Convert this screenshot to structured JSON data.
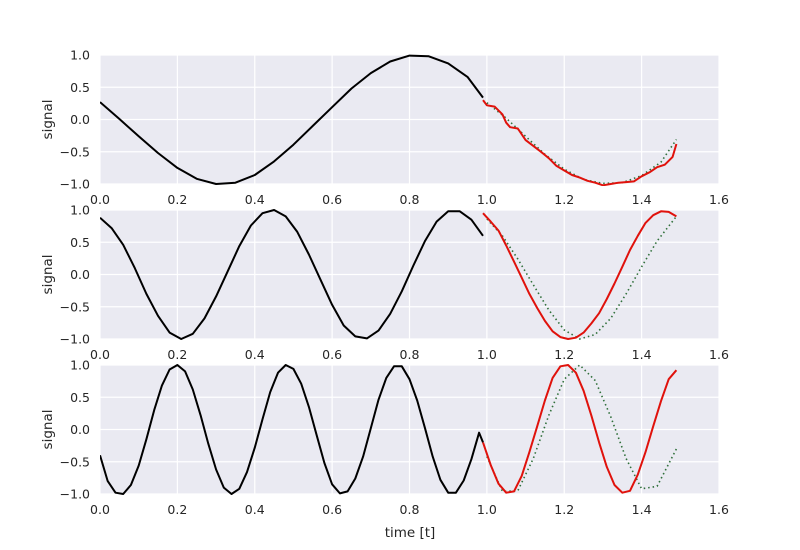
{
  "figure": {
    "xlabel": "time [t]"
  },
  "colors": {
    "panel_background": "#eaeaf2",
    "grid": "#ffffff",
    "history_line": "#000000",
    "prediction_line": "#e0120c",
    "reference_dotted": "#2f6f3a"
  },
  "chart_data": [
    {
      "type": "line",
      "xlabel": "",
      "ylabel": "signal",
      "xlim": [
        0.0,
        1.6
      ],
      "ylim": [
        -1.0,
        1.0
      ],
      "xticks": [
        "0.0",
        "0.2",
        "0.4",
        "0.6",
        "0.8",
        "1.0",
        "1.2",
        "1.4",
        "1.6"
      ],
      "yticks": [
        "1.0",
        "0.5",
        "0.0",
        "−0.5",
        "−1.0"
      ],
      "grid": true,
      "legend": "none",
      "series": [
        {
          "style": "solid-black",
          "x": [
            0.0,
            0.05,
            0.1,
            0.15,
            0.2,
            0.25,
            0.3,
            0.35,
            0.4,
            0.45,
            0.5,
            0.55,
            0.6,
            0.65,
            0.7,
            0.75,
            0.8,
            0.85,
            0.9,
            0.95,
            0.99
          ],
          "y": [
            0.27,
            0.01,
            -0.26,
            -0.52,
            -0.75,
            -0.92,
            -1.0,
            -0.98,
            -0.86,
            -0.65,
            -0.39,
            -0.1,
            0.19,
            0.48,
            0.72,
            0.9,
            0.99,
            0.98,
            0.87,
            0.66,
            0.34
          ]
        },
        {
          "style": "solid-red",
          "x": [
            0.99,
            1.0,
            1.02,
            1.04,
            1.05,
            1.06,
            1.08,
            1.1,
            1.12,
            1.14,
            1.15,
            1.16,
            1.18,
            1.2,
            1.22,
            1.24,
            1.26,
            1.28,
            1.3,
            1.32,
            1.34,
            1.36,
            1.38,
            1.4,
            1.42,
            1.44,
            1.46,
            1.48,
            1.49
          ],
          "y": [
            0.3,
            0.22,
            0.2,
            0.08,
            -0.05,
            -0.12,
            -0.14,
            -0.32,
            -0.41,
            -0.5,
            -0.55,
            -0.6,
            -0.72,
            -0.79,
            -0.86,
            -0.9,
            -0.95,
            -0.98,
            -1.02,
            -1.0,
            -0.98,
            -0.97,
            -0.96,
            -0.88,
            -0.82,
            -0.74,
            -0.7,
            -0.58,
            -0.38
          ]
        },
        {
          "style": "dotted-green",
          "x": [
            1.0,
            1.05,
            1.1,
            1.15,
            1.2,
            1.25,
            1.3,
            1.35,
            1.4,
            1.45,
            1.49
          ],
          "y": [
            0.26,
            0.02,
            -0.26,
            -0.54,
            -0.77,
            -0.93,
            -0.99,
            -0.98,
            -0.87,
            -0.66,
            -0.31
          ]
        }
      ]
    },
    {
      "type": "line",
      "xlabel": "",
      "ylabel": "signal",
      "xlim": [
        0.0,
        1.6
      ],
      "ylim": [
        -1.0,
        1.0
      ],
      "xticks": [
        "0.0",
        "0.2",
        "0.4",
        "0.6",
        "0.8",
        "1.0",
        "1.2",
        "1.4",
        "1.6"
      ],
      "yticks": [
        "1.0",
        "0.5",
        "0.0",
        "−0.5",
        "−1.0"
      ],
      "grid": true,
      "legend": "none",
      "series": [
        {
          "style": "solid-black",
          "x": [
            0.0,
            0.03,
            0.06,
            0.09,
            0.12,
            0.15,
            0.18,
            0.21,
            0.24,
            0.27,
            0.3,
            0.33,
            0.36,
            0.39,
            0.42,
            0.45,
            0.48,
            0.51,
            0.54,
            0.57,
            0.6,
            0.63,
            0.66,
            0.69,
            0.72,
            0.75,
            0.78,
            0.81,
            0.84,
            0.87,
            0.9,
            0.93,
            0.96,
            0.99
          ],
          "y": [
            0.88,
            0.72,
            0.46,
            0.1,
            -0.3,
            -0.64,
            -0.9,
            -1.0,
            -0.92,
            -0.68,
            -0.34,
            0.05,
            0.44,
            0.76,
            0.95,
            1.0,
            0.9,
            0.66,
            0.31,
            -0.08,
            -0.47,
            -0.79,
            -0.96,
            -0.99,
            -0.87,
            -0.61,
            -0.26,
            0.14,
            0.52,
            0.82,
            0.98,
            0.98,
            0.85,
            0.6
          ]
        },
        {
          "style": "solid-red",
          "x": [
            0.99,
            1.01,
            1.03,
            1.05,
            1.07,
            1.09,
            1.11,
            1.13,
            1.15,
            1.17,
            1.19,
            1.21,
            1.23,
            1.25,
            1.27,
            1.29,
            1.31,
            1.33,
            1.35,
            1.37,
            1.39,
            1.41,
            1.43,
            1.45,
            1.47,
            1.49
          ],
          "y": [
            0.95,
            0.82,
            0.68,
            0.45,
            0.2,
            -0.05,
            -0.3,
            -0.52,
            -0.72,
            -0.88,
            -0.97,
            -1.0,
            -0.98,
            -0.9,
            -0.76,
            -0.6,
            -0.38,
            -0.14,
            0.12,
            0.38,
            0.6,
            0.8,
            0.92,
            0.98,
            0.97,
            0.9
          ]
        },
        {
          "style": "dotted-green",
          "x": [
            1.0,
            1.04,
            1.08,
            1.12,
            1.16,
            1.2,
            1.24,
            1.28,
            1.32,
            1.36,
            1.4,
            1.44,
            1.49
          ],
          "y": [
            0.86,
            0.6,
            0.24,
            -0.16,
            -0.55,
            -0.86,
            -1.0,
            -0.93,
            -0.68,
            -0.3,
            0.12,
            0.52,
            0.9
          ]
        }
      ]
    },
    {
      "type": "line",
      "xlabel": "time [t]",
      "ylabel": "signal",
      "xlim": [
        0.0,
        1.6
      ],
      "ylim": [
        -1.0,
        1.0
      ],
      "xticks": [
        "0.0",
        "0.2",
        "0.4",
        "0.6",
        "0.8",
        "1.0",
        "1.2",
        "1.4",
        "1.6"
      ],
      "yticks": [
        "1.0",
        "0.5",
        "0.0",
        "−0.5",
        "−1.0"
      ],
      "grid": true,
      "legend": "none",
      "series": [
        {
          "style": "solid-black",
          "x": [
            0.0,
            0.02,
            0.04,
            0.06,
            0.08,
            0.1,
            0.12,
            0.14,
            0.16,
            0.18,
            0.2,
            0.22,
            0.24,
            0.26,
            0.28,
            0.3,
            0.32,
            0.34,
            0.36,
            0.38,
            0.4,
            0.42,
            0.44,
            0.46,
            0.48,
            0.5,
            0.52,
            0.54,
            0.56,
            0.58,
            0.6,
            0.62,
            0.64,
            0.66,
            0.68,
            0.7,
            0.72,
            0.74,
            0.76,
            0.78,
            0.8,
            0.82,
            0.84,
            0.86,
            0.88,
            0.9,
            0.92,
            0.94,
            0.96,
            0.98,
            0.99
          ],
          "y": [
            -0.4,
            -0.8,
            -0.98,
            -1.0,
            -0.86,
            -0.56,
            -0.15,
            0.3,
            0.68,
            0.93,
            1.0,
            0.9,
            0.62,
            0.22,
            -0.22,
            -0.62,
            -0.9,
            -1.0,
            -0.92,
            -0.66,
            -0.28,
            0.16,
            0.58,
            0.88,
            1.0,
            0.94,
            0.71,
            0.35,
            -0.09,
            -0.52,
            -0.85,
            -0.99,
            -0.96,
            -0.76,
            -0.42,
            0.02,
            0.46,
            0.8,
            0.98,
            0.98,
            0.78,
            0.45,
            0.02,
            -0.42,
            -0.78,
            -0.98,
            -0.98,
            -0.79,
            -0.46,
            -0.05,
            -0.2
          ]
        },
        {
          "style": "solid-red",
          "x": [
            0.99,
            1.01,
            1.03,
            1.05,
            1.07,
            1.09,
            1.11,
            1.13,
            1.15,
            1.17,
            1.19,
            1.21,
            1.23,
            1.25,
            1.27,
            1.29,
            1.31,
            1.33,
            1.35,
            1.37,
            1.39,
            1.41,
            1.43,
            1.45,
            1.47,
            1.49
          ],
          "y": [
            -0.2,
            -0.55,
            -0.84,
            -0.98,
            -0.96,
            -0.72,
            -0.35,
            0.05,
            0.45,
            0.8,
            0.98,
            1.0,
            0.88,
            0.6,
            0.22,
            -0.2,
            -0.58,
            -0.86,
            -0.98,
            -0.95,
            -0.7,
            -0.35,
            0.05,
            0.44,
            0.78,
            0.92
          ]
        },
        {
          "style": "dotted-green",
          "x": [
            1.0,
            1.04,
            1.08,
            1.12,
            1.16,
            1.2,
            1.24,
            1.28,
            1.32,
            1.36,
            1.4,
            1.44,
            1.49
          ],
          "y": [
            -0.42,
            -0.96,
            -0.95,
            -0.45,
            0.22,
            0.78,
            1.0,
            0.76,
            0.2,
            -0.45,
            -0.92,
            -0.88,
            -0.3
          ]
        }
      ]
    }
  ]
}
